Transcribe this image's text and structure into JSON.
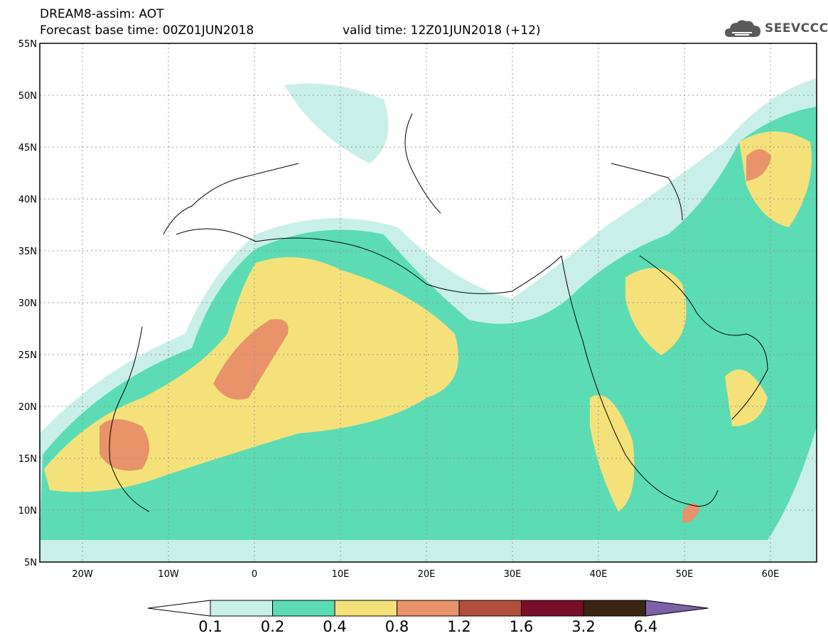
{
  "header": {
    "title": "DREAM8-assim: AOT",
    "base_time": "Forecast base time: 00Z01JUN2018",
    "valid_time": "valid time: 12Z01JUN2018 (+12)"
  },
  "logo": {
    "text": "SEEVCCC",
    "icon": "cloud-icon"
  },
  "map": {
    "lat_labels": [
      "55N",
      "50N",
      "45N",
      "40N",
      "35N",
      "30N",
      "25N",
      "20N",
      "15N",
      "10N",
      "5N"
    ],
    "lon_labels": [
      "20W",
      "10W",
      "0",
      "10E",
      "20E",
      "30E",
      "40E",
      "50E",
      "60E"
    ],
    "lat_range": [
      5,
      55
    ],
    "lon_range": [
      -25,
      65
    ]
  },
  "colorbar": {
    "labels": [
      "0.1",
      "0.2",
      "0.4",
      "0.8",
      "1.2",
      "1.6",
      "3.2",
      "6.4"
    ],
    "colors": [
      "#c8f0e8",
      "#5cdcb4",
      "#f5e17a",
      "#e8936a",
      "#b0503c",
      "#7a0f2a",
      "#3a2412",
      "#8060a8"
    ],
    "under_color": "#ffffff"
  }
}
